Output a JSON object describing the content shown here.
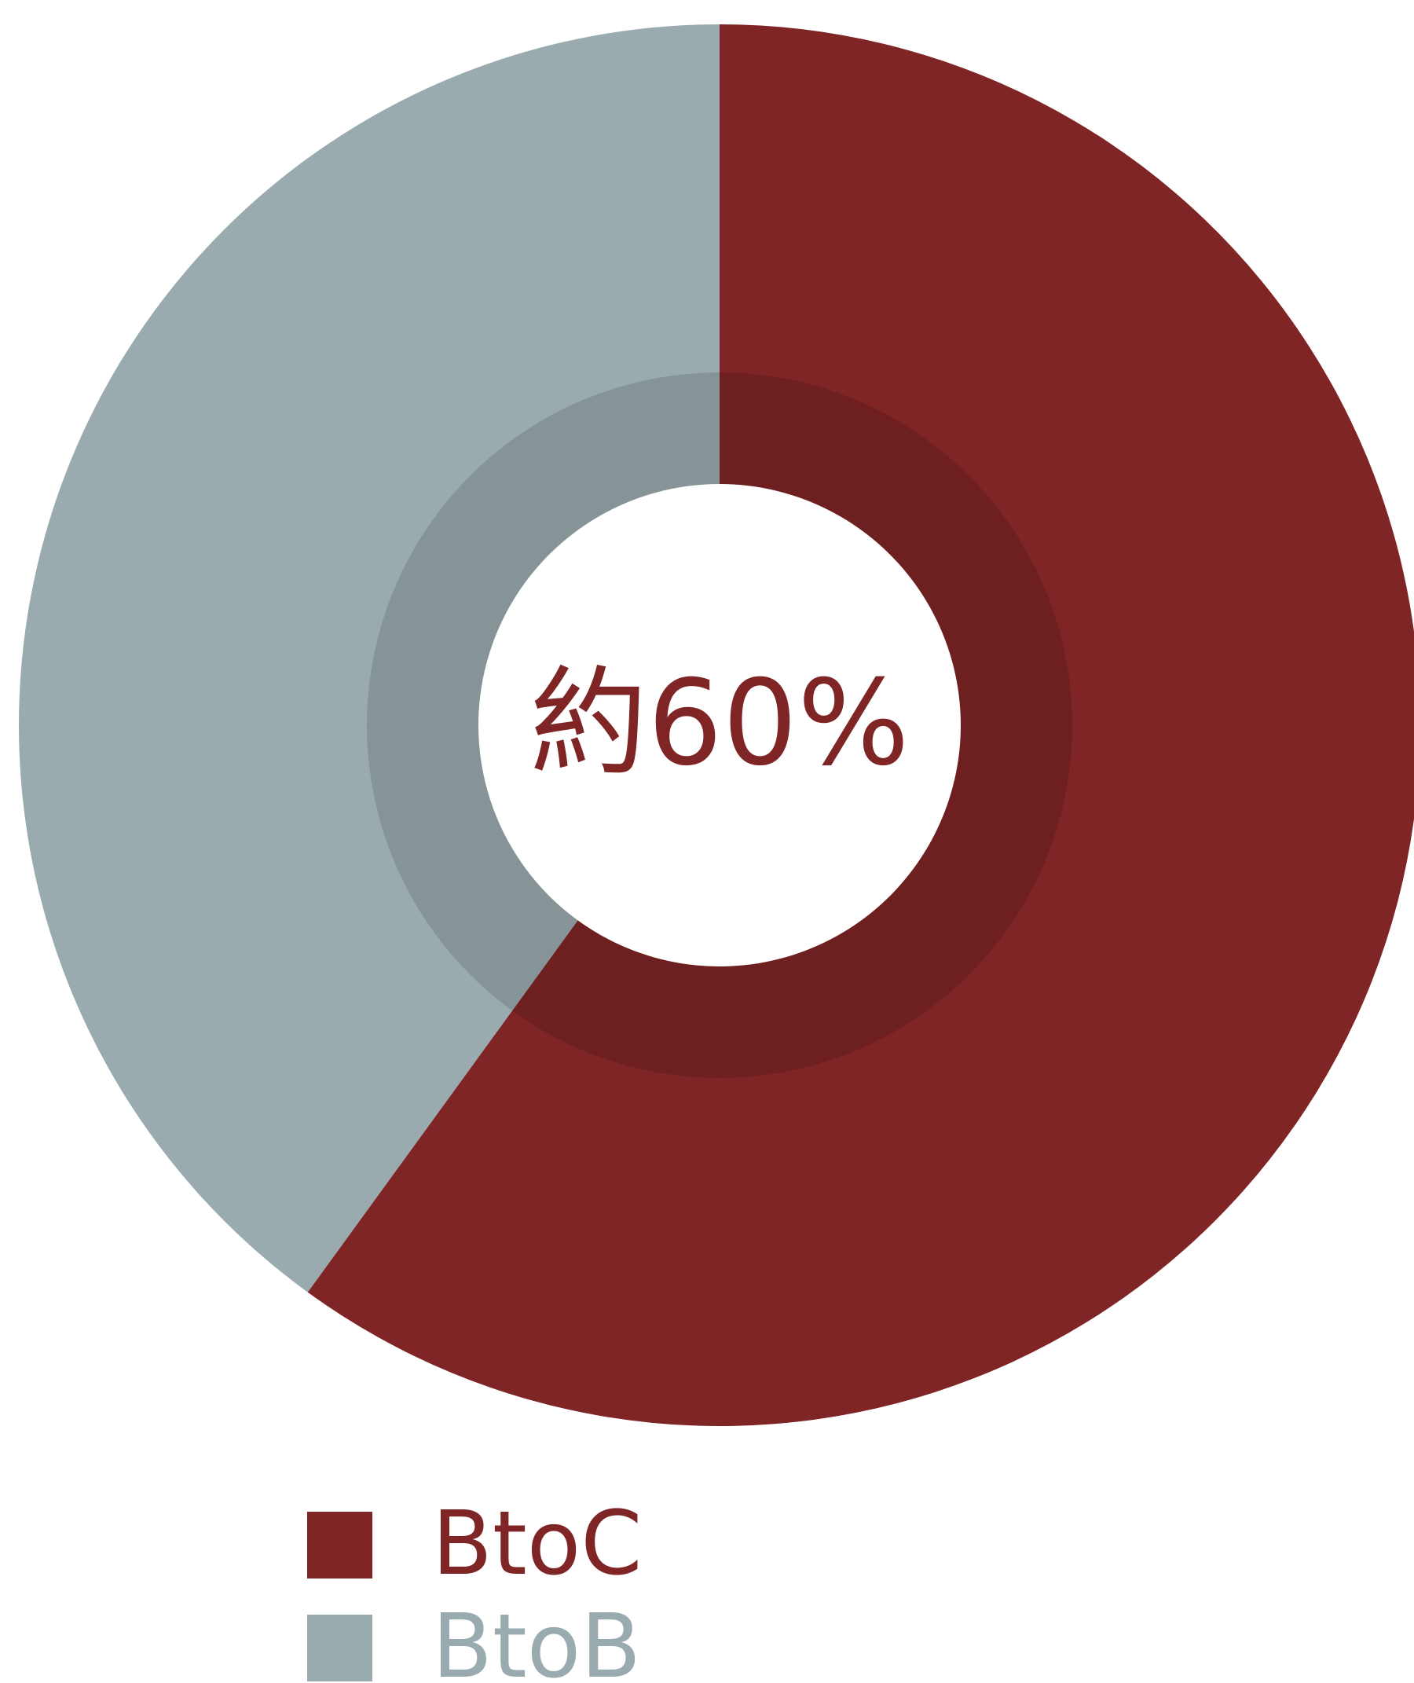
{
  "chart_data": {
    "type": "donut",
    "center_label": "約60%",
    "categories": [
      "BtoC",
      "BtoB"
    ],
    "values": [
      60,
      40
    ],
    "colors": [
      "#7f2526",
      "#9aabaf"
    ],
    "legend": "bottom"
  }
}
